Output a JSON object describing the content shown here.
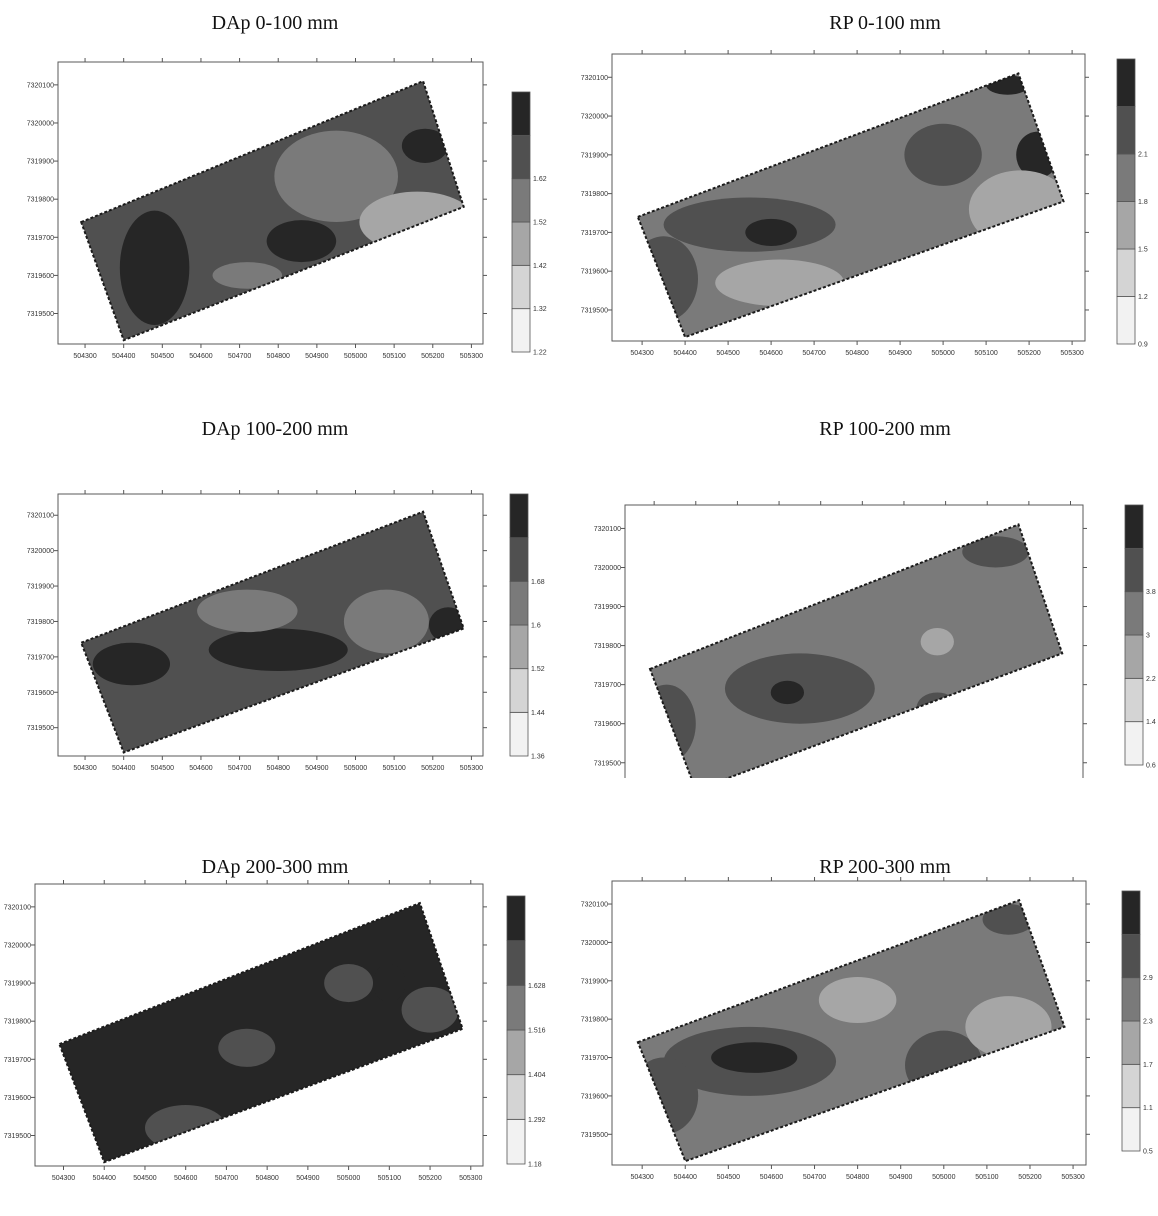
{
  "axes": {
    "x_ticks": [
      "504300",
      "504400",
      "504500",
      "504600",
      "504700",
      "504800",
      "504900",
      "505000",
      "505100",
      "505200",
      "505300"
    ],
    "y_ticks": [
      "7320100",
      "7320000",
      "7319900",
      "7319800",
      "7319700",
      "7319600",
      "7319500"
    ]
  },
  "colors": {
    "shades": [
      "#f2f2f2",
      "#d4d4d4",
      "#a6a6a6",
      "#7a7a7a",
      "#505050",
      "#262626"
    ],
    "frame": "#5a5a5a",
    "map_edge": "#1a1a1a"
  },
  "panels": [
    {
      "id": "dap-0-100",
      "title": "DAp 0-100 mm",
      "legend": [
        "1.22",
        "1.32",
        "1.42",
        "1.52",
        "1.62"
      ],
      "base_shade": 4,
      "blobs": [
        {
          "x": 504950,
          "y": 7319860,
          "rx": 160,
          "ry": 120,
          "shade": 3
        },
        {
          "x": 505160,
          "y": 7319740,
          "rx": 150,
          "ry": 80,
          "shade": 2
        },
        {
          "x": 505180,
          "y": 7319940,
          "rx": 60,
          "ry": 45,
          "shade": 5
        },
        {
          "x": 504480,
          "y": 7319620,
          "rx": 90,
          "ry": 150,
          "shade": 5
        },
        {
          "x": 504860,
          "y": 7319690,
          "rx": 90,
          "ry": 55,
          "shade": 5
        },
        {
          "x": 504720,
          "y": 7319600,
          "rx": 90,
          "ry": 35,
          "shade": 3
        }
      ]
    },
    {
      "id": "rp-0-100",
      "title": "RP 0-100 mm",
      "legend": [
        "0.9",
        "1.2",
        "1.5",
        "1.8",
        "2.1"
      ],
      "base_shade": 3,
      "blobs": [
        {
          "x": 504550,
          "y": 7319720,
          "rx": 200,
          "ry": 70,
          "shade": 4
        },
        {
          "x": 504600,
          "y": 7319700,
          "rx": 60,
          "ry": 35,
          "shade": 5
        },
        {
          "x": 504350,
          "y": 7319580,
          "rx": 80,
          "ry": 110,
          "shade": 4
        },
        {
          "x": 505000,
          "y": 7319900,
          "rx": 90,
          "ry": 80,
          "shade": 4
        },
        {
          "x": 505220,
          "y": 7319900,
          "rx": 50,
          "ry": 60,
          "shade": 5
        },
        {
          "x": 505150,
          "y": 7320080,
          "rx": 50,
          "ry": 25,
          "shade": 5
        },
        {
          "x": 504620,
          "y": 7319570,
          "rx": 150,
          "ry": 60,
          "shade": 2
        },
        {
          "x": 505180,
          "y": 7319760,
          "rx": 120,
          "ry": 100,
          "shade": 2
        }
      ]
    },
    {
      "id": "dap-100-200",
      "title": "DAp 100-200 mm",
      "legend": [
        "1.36",
        "1.44",
        "1.52",
        "1.6",
        "1.68"
      ],
      "base_shade": 4,
      "blobs": [
        {
          "x": 504800,
          "y": 7319720,
          "rx": 180,
          "ry": 60,
          "shade": 5
        },
        {
          "x": 504420,
          "y": 7319680,
          "rx": 100,
          "ry": 60,
          "shade": 5
        },
        {
          "x": 504720,
          "y": 7319830,
          "rx": 130,
          "ry": 60,
          "shade": 3
        },
        {
          "x": 505080,
          "y": 7319800,
          "rx": 110,
          "ry": 90,
          "shade": 3
        },
        {
          "x": 505240,
          "y": 7319790,
          "rx": 50,
          "ry": 50,
          "shade": 5
        }
      ]
    },
    {
      "id": "rp-100-200",
      "title": "RP 100-200 mm",
      "legend": [
        "0.6",
        "1.4",
        "2.2",
        "3",
        "3.8"
      ],
      "base_shade": 3,
      "blobs": [
        {
          "x": 504650,
          "y": 7319690,
          "rx": 180,
          "ry": 90,
          "shade": 4
        },
        {
          "x": 504620,
          "y": 7319680,
          "rx": 40,
          "ry": 30,
          "shade": 5
        },
        {
          "x": 504330,
          "y": 7319600,
          "rx": 70,
          "ry": 100,
          "shade": 4
        },
        {
          "x": 504310,
          "y": 7319600,
          "rx": 25,
          "ry": 40,
          "shade": 5
        },
        {
          "x": 504980,
          "y": 7319640,
          "rx": 50,
          "ry": 40,
          "shade": 4
        },
        {
          "x": 505120,
          "y": 7320040,
          "rx": 80,
          "ry": 40,
          "shade": 4
        },
        {
          "x": 504980,
          "y": 7319810,
          "rx": 40,
          "ry": 35,
          "shade": 2
        }
      ]
    },
    {
      "id": "dap-200-300",
      "title": "DAp 200-300 mm",
      "legend": [
        "1.18",
        "1.292",
        "1.404",
        "1.516",
        "1.628"
      ],
      "base_shade": 5,
      "blobs": [
        {
          "x": 504750,
          "y": 7319730,
          "rx": 70,
          "ry": 50,
          "shade": 4
        },
        {
          "x": 505000,
          "y": 7319900,
          "rx": 60,
          "ry": 50,
          "shade": 4
        },
        {
          "x": 505100,
          "y": 7319900,
          "rx": 40,
          "ry": 50,
          "shade": 5
        },
        {
          "x": 504600,
          "y": 7319520,
          "rx": 100,
          "ry": 60,
          "shade": 4
        },
        {
          "x": 505200,
          "y": 7319830,
          "rx": 70,
          "ry": 60,
          "shade": 4
        }
      ]
    },
    {
      "id": "rp-200-300",
      "title": "RP 200-300 mm",
      "legend": [
        "0.5",
        "1.1",
        "1.7",
        "2.3",
        "2.9"
      ],
      "base_shade": 3,
      "blobs": [
        {
          "x": 504550,
          "y": 7319690,
          "rx": 200,
          "ry": 90,
          "shade": 4
        },
        {
          "x": 504560,
          "y": 7319700,
          "rx": 100,
          "ry": 40,
          "shade": 5
        },
        {
          "x": 504350,
          "y": 7319600,
          "rx": 80,
          "ry": 100,
          "shade": 4
        },
        {
          "x": 505000,
          "y": 7319680,
          "rx": 90,
          "ry": 90,
          "shade": 4
        },
        {
          "x": 504800,
          "y": 7319850,
          "rx": 90,
          "ry": 60,
          "shade": 2
        },
        {
          "x": 505150,
          "y": 7319780,
          "rx": 100,
          "ry": 80,
          "shade": 2
        },
        {
          "x": 505150,
          "y": 7320060,
          "rx": 60,
          "ry": 40,
          "shade": 4
        }
      ]
    }
  ]
}
